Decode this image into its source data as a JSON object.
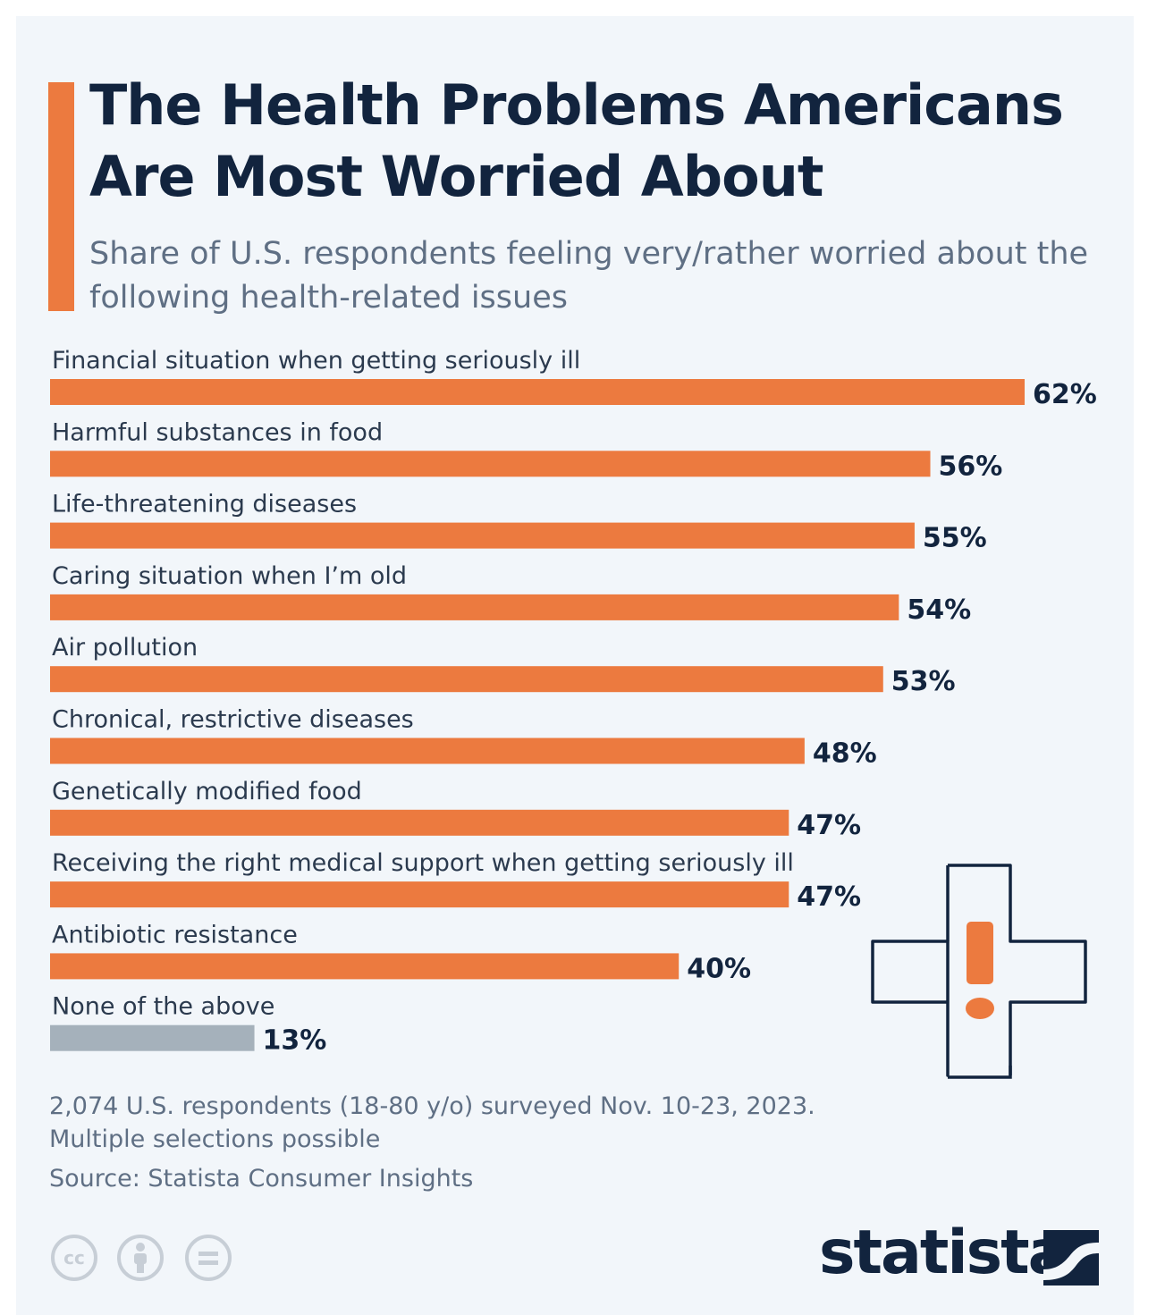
{
  "title": "The Health Problems Americans Are Most Worried About",
  "subtitle": "Share of U.S. respondents feeling very/rather worried about the following health-related issues",
  "footnote_line1": "2,074 U.S. respondents (18-80 y/o) surveyed Nov. 10-23, 2023.",
  "footnote_line2": "Multiple selections possible",
  "source": "Source: Statista Consumer Insights",
  "brand": "statista",
  "colors": {
    "background": "#f2f6fa",
    "accent": "#ec7a3f",
    "bar": "#ec7a3f",
    "bar_none": "#a5b1bb",
    "title": "#12243e",
    "text": "#2b3a4e",
    "muted": "#5f6f84"
  },
  "icons": [
    "medical-cross-exclamation-icon",
    "cc-icon",
    "attribution-icon",
    "no-derivatives-icon",
    "statista-logo-icon"
  ],
  "chart_data": {
    "type": "bar",
    "orientation": "horizontal",
    "value_suffix": "%",
    "xlim": [
      0,
      62
    ],
    "grid": false,
    "categories": [
      "Financial situation when getting seriously ill",
      "Harmful substances in food",
      "Life-threatening diseases",
      "Caring situation when I’m old",
      "Air pollution",
      "Chronical, restrictive diseases",
      "Genetically modified food",
      "Receiving the right medical support when getting seriously ill",
      "Antibiotic resistance",
      "None of the above"
    ],
    "values": [
      62,
      56,
      55,
      54,
      53,
      48,
      47,
      47,
      40,
      13
    ],
    "data_labels": [
      "62%",
      "56%",
      "55%",
      "54%",
      "53%",
      "48%",
      "47%",
      "47%",
      "40%",
      "13%"
    ]
  }
}
